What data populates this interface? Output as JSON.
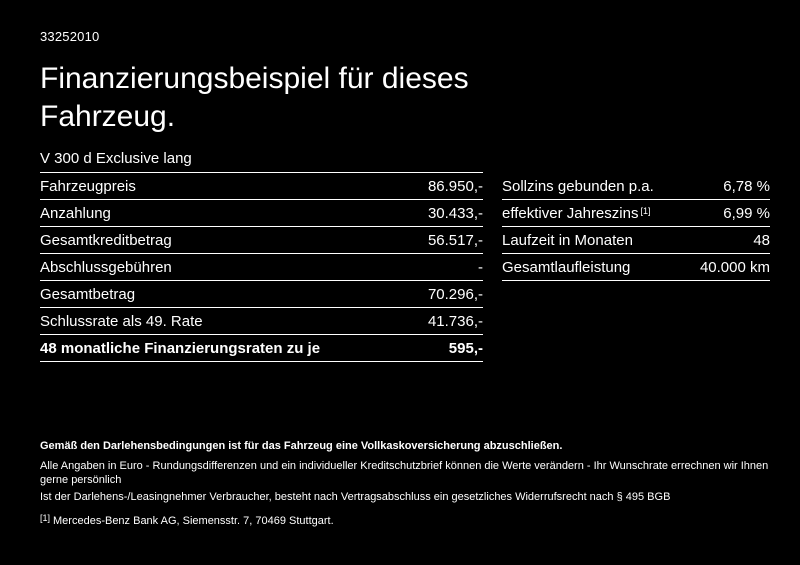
{
  "page": {
    "listing_id": "33252010",
    "title_line1": "Finanzierungsbeispiel für dieses",
    "title_line2": "Fahrzeug.",
    "vehicle": "V 300 d Exclusive lang"
  },
  "finance_table": {
    "rows": [
      {
        "label": "Fahrzeugpreis",
        "value": "86.950,-"
      },
      {
        "label": "Anzahlung",
        "value": "30.433,-"
      },
      {
        "label": "Gesamtkreditbetrag",
        "value": "56.517,-"
      },
      {
        "label": "Abschlussgebühren",
        "value": "-"
      },
      {
        "label": "Gesamtbetrag",
        "value": "70.296,-"
      },
      {
        "label": "Schlussrate als 49. Rate",
        "value": "41.736,-"
      },
      {
        "label": "48 monatliche Finanzierungsraten zu je",
        "value": "595,-"
      }
    ]
  },
  "conditions_table": {
    "rows": [
      {
        "label": "Sollzins gebunden p.a.",
        "value": "6,78 %"
      },
      {
        "label": "effektiver Jahreszins",
        "footnote": "[1]",
        "value": "6,99 %"
      },
      {
        "label": "Laufzeit in Monaten",
        "value": "48"
      },
      {
        "label": "Gesamtlaufleistung",
        "value": "40.000 km"
      }
    ]
  },
  "footer": {
    "bold_note": "Gemäß den Darlehensbedingungen ist für das Fahrzeug eine Vollkaskoversicherung abzuschließen.",
    "note1": "Alle Angaben in Euro - Rundungsdifferenzen und ein individueller Kreditschutzbrief können die Werte verändern - Ihr Wunschrate errechnen wir Ihnen gerne persönlich",
    "note2": "Ist der Darlehens-/Leasingnehmer Verbraucher, besteht nach Vertragsabschluss ein gesetzliches Widerrufsrecht nach § 495 BGB",
    "footnote_marker": "[1]",
    "footnote_text": "Mercedes-Benz Bank AG, Siemensstr. 7, 70469 Stuttgart."
  },
  "colors": {
    "background": "#000000",
    "text": "#ffffff",
    "divider": "#ffffff"
  }
}
